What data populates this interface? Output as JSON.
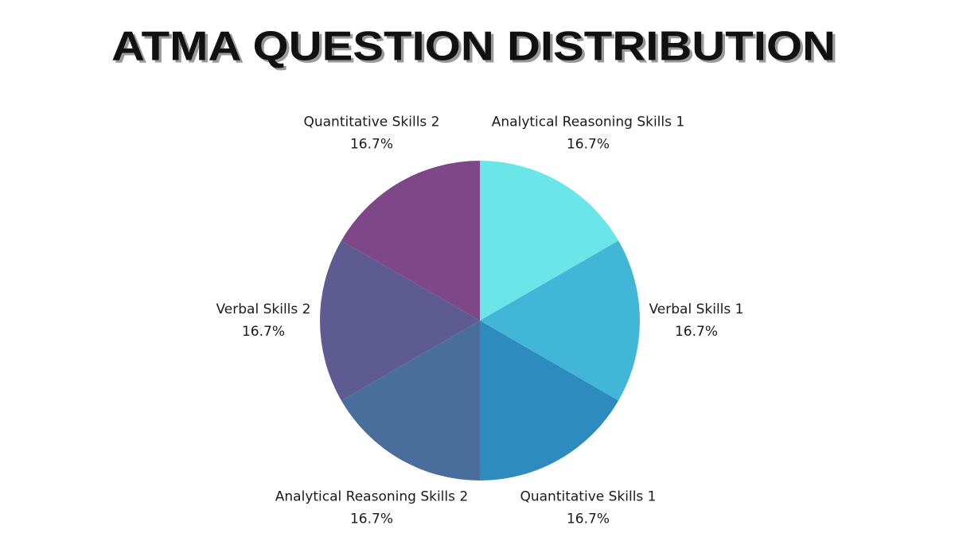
{
  "chart_data": {
    "type": "pie",
    "title": "ATMA QUESTION DISTRIBUTION",
    "categories": [
      "Analytical Reasoning Skills 1",
      "Verbal Skills 1",
      "Quantitative Skills 1",
      "Analytical Reasoning Skills 2",
      "Verbal Skills 2",
      "Quantitative Skills 2"
    ],
    "values": [
      16.7,
      16.7,
      16.7,
      16.7,
      16.7,
      16.7
    ],
    "value_labels": [
      "16.7%",
      "16.7%",
      "16.7%",
      "16.7%",
      "16.7%",
      "16.7%"
    ],
    "colors": [
      "#6be5e8",
      "#42b6d6",
      "#2e8bbf",
      "#4a6e9c",
      "#5e5a92",
      "#7d4788"
    ]
  }
}
